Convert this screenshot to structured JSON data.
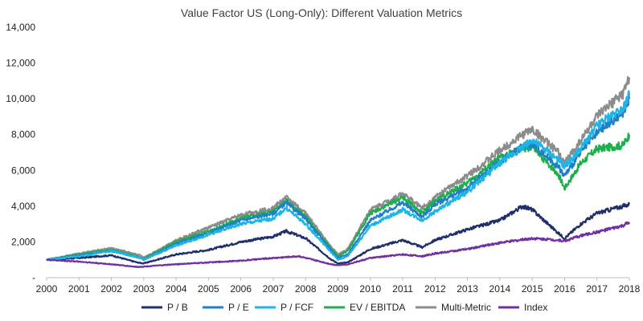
{
  "chart_data": {
    "type": "line",
    "title": "Value Factor US (Long-Only): Different Valuation Metrics",
    "xlabel": "",
    "ylabel": "",
    "xlim": [
      2000,
      2018
    ],
    "ylim": [
      0,
      14000
    ],
    "x_ticks": [
      "2000",
      "2001",
      "2002",
      "2003",
      "2004",
      "2005",
      "2006",
      "2007",
      "2008",
      "2009",
      "2010",
      "2011",
      "2012",
      "2013",
      "2014",
      "2015",
      "2016",
      "2017",
      "2018"
    ],
    "y_ticks": [
      {
        "value": 0,
        "label": "-"
      },
      {
        "value": 2000,
        "label": "2,000"
      },
      {
        "value": 4000,
        "label": "4,000"
      },
      {
        "value": 6000,
        "label": "6,000"
      },
      {
        "value": 8000,
        "label": "8,000"
      },
      {
        "value": 10000,
        "label": "10,000"
      },
      {
        "value": 12000,
        "label": "12,000"
      },
      {
        "value": 14000,
        "label": "14,000"
      }
    ],
    "grid": false,
    "legend_position": "bottom",
    "series": [
      {
        "name": "P / B",
        "color": "#1f2f6b",
        "points": [
          [
            2000,
            1000
          ],
          [
            2001,
            1100
          ],
          [
            2002,
            1250
          ],
          [
            2002.8,
            850
          ],
          [
            2003,
            800
          ],
          [
            2004,
            1300
          ],
          [
            2005,
            1550
          ],
          [
            2006,
            2000
          ],
          [
            2007,
            2300
          ],
          [
            2007.4,
            2600
          ],
          [
            2008,
            2200
          ],
          [
            2008.8,
            1000
          ],
          [
            2009,
            800
          ],
          [
            2009.3,
            850
          ],
          [
            2010,
            1600
          ],
          [
            2011,
            2100
          ],
          [
            2011.6,
            1700
          ],
          [
            2012,
            2100
          ],
          [
            2013,
            2700
          ],
          [
            2014,
            3200
          ],
          [
            2014.7,
            4000
          ],
          [
            2015,
            3800
          ],
          [
            2015.8,
            2500
          ],
          [
            2016,
            2200
          ],
          [
            2016.5,
            3000
          ],
          [
            2017,
            3600
          ],
          [
            2017.8,
            4000
          ],
          [
            2018,
            4100
          ]
        ]
      },
      {
        "name": "P / E",
        "color": "#1f7fc7",
        "points": [
          [
            2000,
            1000
          ],
          [
            2001,
            1250
          ],
          [
            2002,
            1500
          ],
          [
            2002.9,
            1100
          ],
          [
            2003,
            1000
          ],
          [
            2004,
            1900
          ],
          [
            2005,
            2500
          ],
          [
            2006,
            3200
          ],
          [
            2007,
            3600
          ],
          [
            2007.4,
            4200
          ],
          [
            2008,
            3300
          ],
          [
            2008.8,
            1500
          ],
          [
            2009,
            1100
          ],
          [
            2009.3,
            1300
          ],
          [
            2010,
            3200
          ],
          [
            2011,
            4200
          ],
          [
            2011.6,
            3400
          ],
          [
            2012,
            4100
          ],
          [
            2013,
            5000
          ],
          [
            2014,
            6500
          ],
          [
            2014.7,
            7300
          ],
          [
            2015,
            7500
          ],
          [
            2015.8,
            6200
          ],
          [
            2016,
            5700
          ],
          [
            2016.5,
            7000
          ],
          [
            2017,
            8100
          ],
          [
            2017.8,
            9200
          ],
          [
            2018,
            10000
          ]
        ]
      },
      {
        "name": "P / FCF",
        "color": "#1eb4e6",
        "points": [
          [
            2000,
            1000
          ],
          [
            2001,
            1200
          ],
          [
            2002,
            1500
          ],
          [
            2002.9,
            1100
          ],
          [
            2003,
            1000
          ],
          [
            2004,
            1800
          ],
          [
            2005,
            2400
          ],
          [
            2006,
            3000
          ],
          [
            2007,
            3300
          ],
          [
            2007.4,
            3900
          ],
          [
            2008,
            3000
          ],
          [
            2008.8,
            1400
          ],
          [
            2009,
            1000
          ],
          [
            2009.3,
            1200
          ],
          [
            2010,
            2900
          ],
          [
            2011,
            3800
          ],
          [
            2011.6,
            3200
          ],
          [
            2012,
            3700
          ],
          [
            2013,
            4800
          ],
          [
            2014,
            6400
          ],
          [
            2014.7,
            7300
          ],
          [
            2015,
            7700
          ],
          [
            2015.8,
            6600
          ],
          [
            2016,
            6200
          ],
          [
            2016.5,
            7200
          ],
          [
            2017,
            8500
          ],
          [
            2017.8,
            9500
          ],
          [
            2018,
            10200
          ]
        ]
      },
      {
        "name": "EV / EBITDA",
        "color": "#1fae4e",
        "points": [
          [
            2000,
            1000
          ],
          [
            2001,
            1300
          ],
          [
            2002,
            1550
          ],
          [
            2002.9,
            1150
          ],
          [
            2003,
            1050
          ],
          [
            2004,
            2000
          ],
          [
            2005,
            2600
          ],
          [
            2006,
            3300
          ],
          [
            2007,
            3700
          ],
          [
            2007.4,
            4300
          ],
          [
            2008,
            3400
          ],
          [
            2008.8,
            1600
          ],
          [
            2009,
            1200
          ],
          [
            2009.3,
            1500
          ],
          [
            2010,
            3600
          ],
          [
            2011,
            4500
          ],
          [
            2011.6,
            3600
          ],
          [
            2012,
            4300
          ],
          [
            2013,
            5300
          ],
          [
            2014,
            6700
          ],
          [
            2014.7,
            7200
          ],
          [
            2015,
            7300
          ],
          [
            2015.8,
            5800
          ],
          [
            2016,
            5000
          ],
          [
            2016.5,
            6400
          ],
          [
            2017,
            7200
          ],
          [
            2017.8,
            7400
          ],
          [
            2018,
            8000
          ]
        ]
      },
      {
        "name": "Multi-Metric",
        "color": "#8c8c8c",
        "points": [
          [
            2000,
            1000
          ],
          [
            2001,
            1350
          ],
          [
            2002,
            1650
          ],
          [
            2002.9,
            1250
          ],
          [
            2003,
            1100
          ],
          [
            2004,
            2100
          ],
          [
            2005,
            2800
          ],
          [
            2006,
            3500
          ],
          [
            2007,
            3900
          ],
          [
            2007.4,
            4500
          ],
          [
            2008,
            3600
          ],
          [
            2008.8,
            1700
          ],
          [
            2009,
            1300
          ],
          [
            2009.3,
            1600
          ],
          [
            2010,
            3800
          ],
          [
            2011,
            4700
          ],
          [
            2011.6,
            3900
          ],
          [
            2012,
            4500
          ],
          [
            2013,
            5700
          ],
          [
            2014,
            7100
          ],
          [
            2014.7,
            8000
          ],
          [
            2015,
            8300
          ],
          [
            2015.8,
            7000
          ],
          [
            2016,
            6400
          ],
          [
            2016.5,
            7700
          ],
          [
            2017,
            9000
          ],
          [
            2017.8,
            10300
          ],
          [
            2018,
            11200
          ]
        ]
      },
      {
        "name": "Index",
        "color": "#7030a0",
        "points": [
          [
            2000,
            1000
          ],
          [
            2001,
            900
          ],
          [
            2002,
            750
          ],
          [
            2002.8,
            600
          ],
          [
            2003,
            620
          ],
          [
            2004,
            750
          ],
          [
            2005,
            850
          ],
          [
            2006,
            950
          ],
          [
            2007,
            1100
          ],
          [
            2007.8,
            1200
          ],
          [
            2008,
            1100
          ],
          [
            2008.8,
            750
          ],
          [
            2009,
            700
          ],
          [
            2009.3,
            750
          ],
          [
            2010,
            1100
          ],
          [
            2011,
            1300
          ],
          [
            2011.6,
            1200
          ],
          [
            2012,
            1350
          ],
          [
            2013,
            1600
          ],
          [
            2014,
            1950
          ],
          [
            2015,
            2200
          ],
          [
            2015.8,
            2100
          ],
          [
            2016,
            2050
          ],
          [
            2016.5,
            2350
          ],
          [
            2017,
            2550
          ],
          [
            2017.8,
            2900
          ],
          [
            2018,
            3100
          ]
        ]
      }
    ]
  }
}
